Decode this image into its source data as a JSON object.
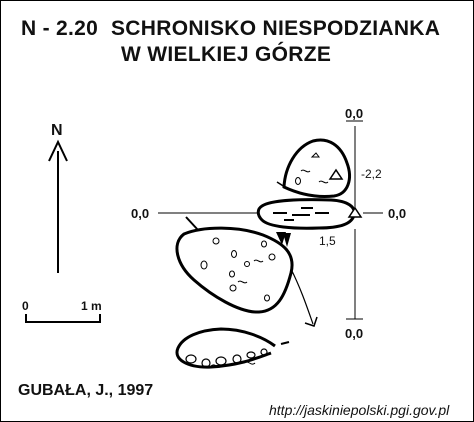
{
  "title": {
    "code": "N - 2.20",
    "line1": "SCHRONISKO NIESPODZIANKA",
    "line2": "W WIELKIEJ GÓRZE"
  },
  "north_label": "N",
  "scale": {
    "start": "0",
    "end": "1 m"
  },
  "levels": {
    "top": "0,0",
    "left": "0,0",
    "right": "0,0",
    "bottom": "0,0",
    "depth_minus": "-2,2",
    "depth_plus": "1,5"
  },
  "author": "GUBAŁA, J., 1997",
  "source_url": "http://jaskiniepolski.pgi.gov.pl"
}
